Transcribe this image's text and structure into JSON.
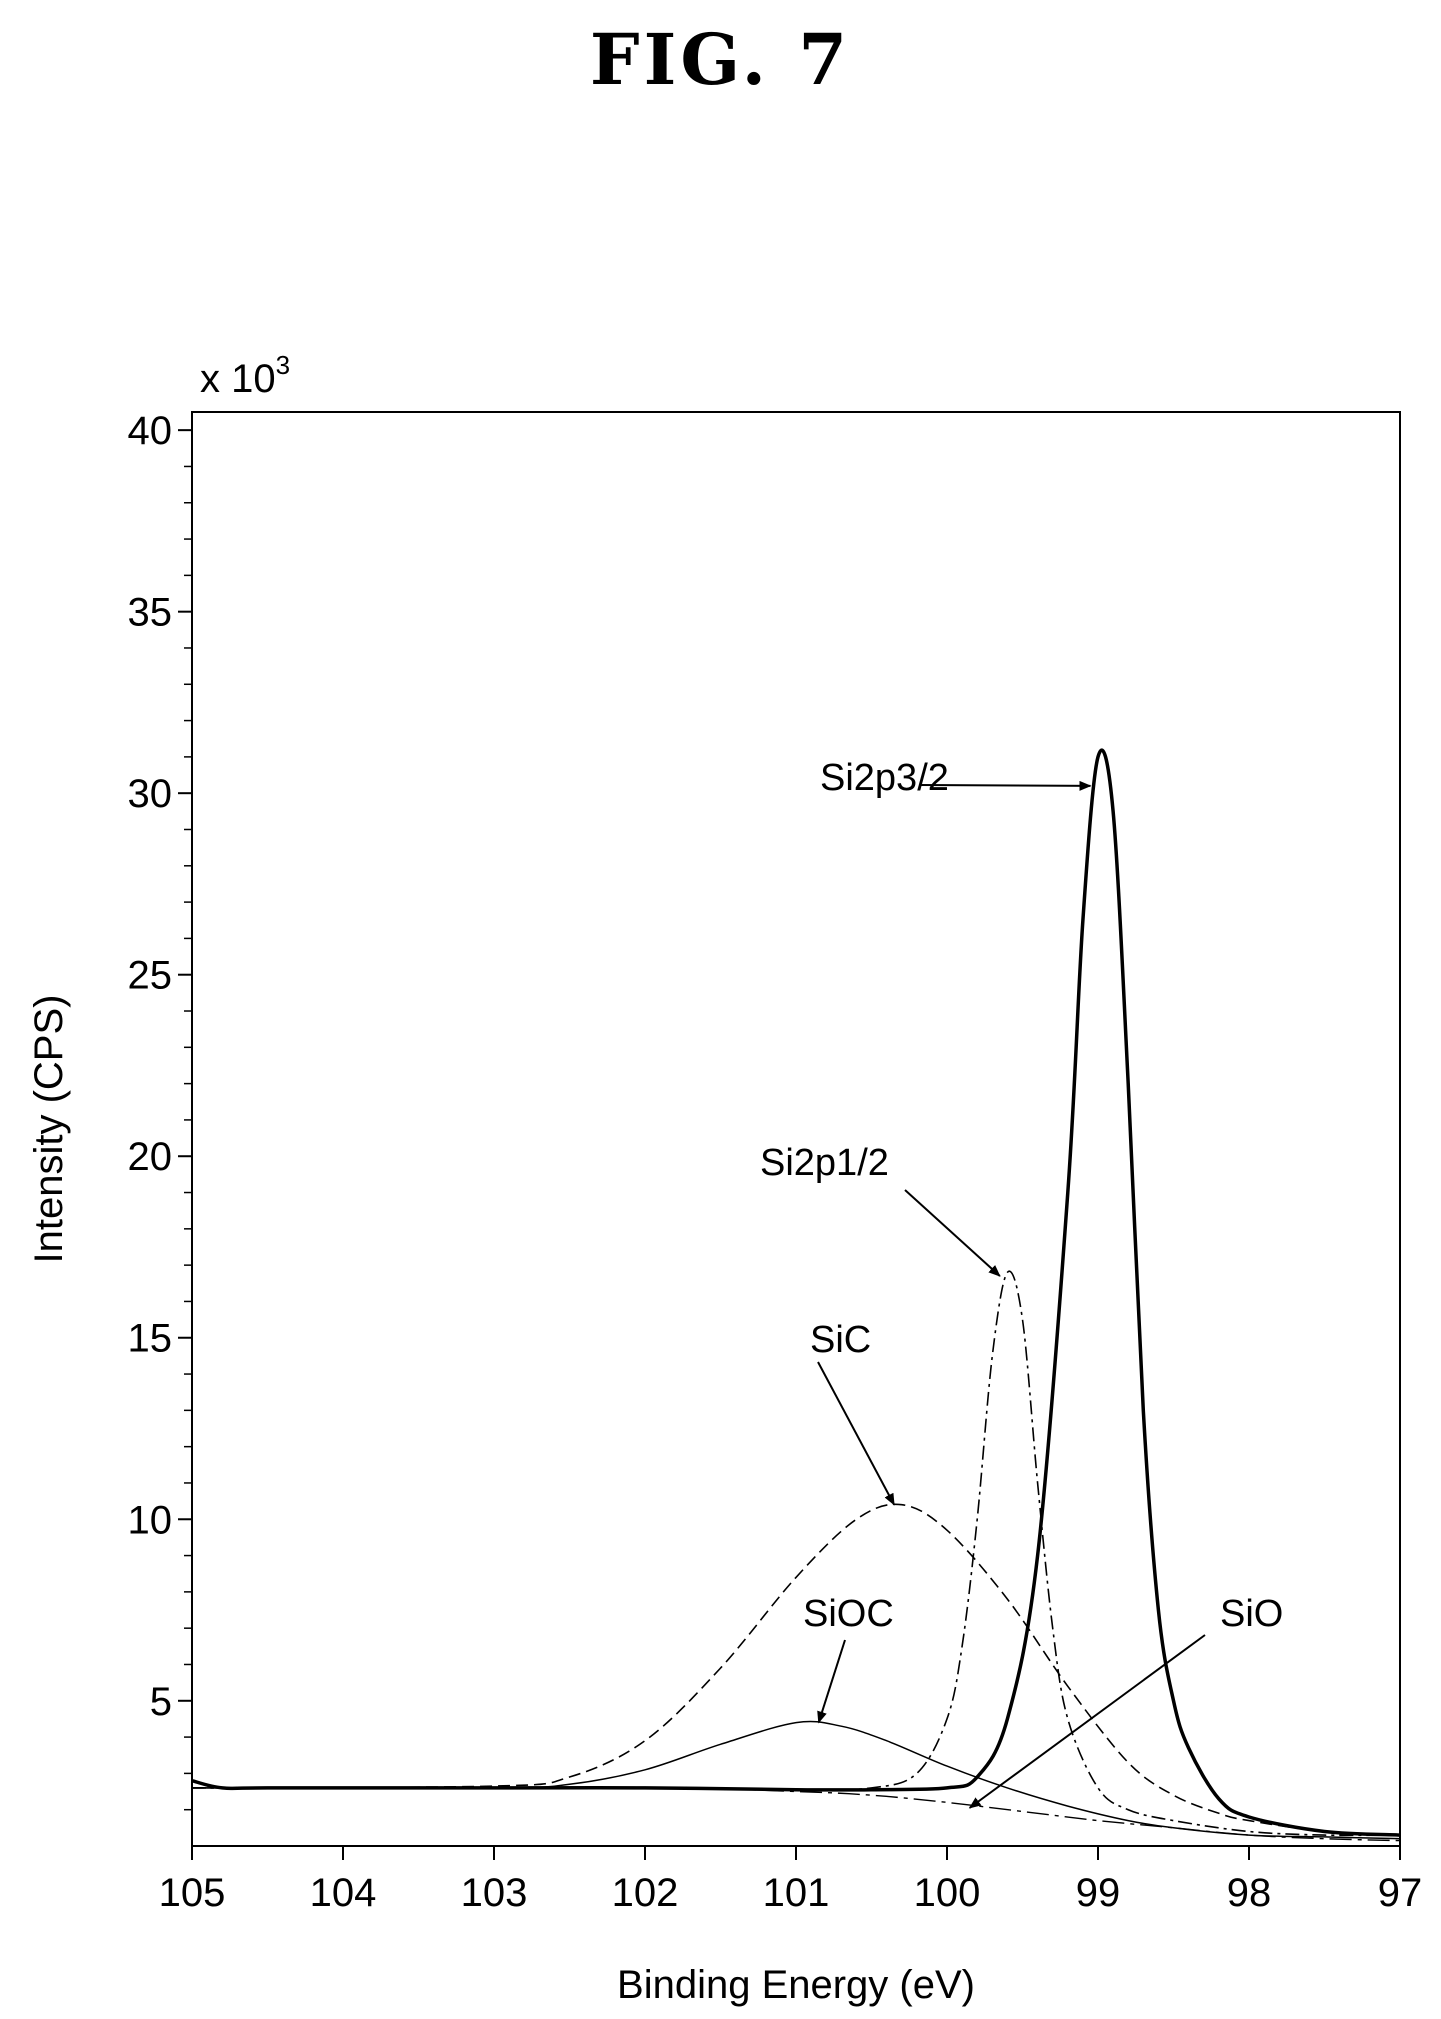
{
  "figure_title": "FIG. 7",
  "chart_data": {
    "type": "line",
    "title": "",
    "xlabel": "Binding Energy (eV)",
    "ylabel": "Intensity (CPS)",
    "y_multiplier_label": "x 10",
    "y_multiplier_exp": "3",
    "xlim": [
      105,
      97
    ],
    "ylim": [
      1,
      40.5
    ],
    "x_reversed": true,
    "grid": false,
    "x_ticks": [
      "105",
      "104",
      "103",
      "102",
      "101",
      "100",
      "99",
      "98",
      "97"
    ],
    "y_ticks": [
      "5",
      "10",
      "15",
      "20",
      "25",
      "30",
      "35",
      "40"
    ],
    "series": [
      {
        "name": "Si2p3/2",
        "style": "solid-bold",
        "x": [
          105,
          104.8,
          104.5,
          103,
          102,
          101,
          100.5,
          100,
          99.8,
          99.6,
          99.4,
          99.2,
          99.1,
          99.0,
          98.9,
          98.8,
          98.7,
          98.6,
          98.5,
          98.4,
          98.2,
          98.0,
          97.5,
          97.0
        ],
        "y": [
          2.8,
          2.6,
          2.6,
          2.6,
          2.6,
          2.55,
          2.55,
          2.6,
          2.9,
          4.5,
          9.0,
          19.0,
          26.5,
          31.0,
          29.5,
          22.0,
          13.0,
          7.5,
          5.0,
          3.7,
          2.3,
          1.8,
          1.4,
          1.3
        ]
      },
      {
        "name": "Si2p1/2",
        "style": "dash-dot",
        "x": [
          105,
          102,
          101,
          100.5,
          100.2,
          100.0,
          99.9,
          99.8,
          99.7,
          99.6,
          99.5,
          99.4,
          99.3,
          99.2,
          99.0,
          98.8,
          98.5,
          98.0,
          97.5,
          97.0
        ],
        "y": [
          2.6,
          2.6,
          2.55,
          2.6,
          3.0,
          4.5,
          6.5,
          10.0,
          14.5,
          16.8,
          15.5,
          11.0,
          7.0,
          4.5,
          2.6,
          2.0,
          1.7,
          1.4,
          1.3,
          1.3
        ]
      },
      {
        "name": "SiC",
        "style": "dashed",
        "x": [
          105,
          103,
          102.5,
          102,
          101.5,
          101,
          100.6,
          100.3,
          100.0,
          99.6,
          99.2,
          98.8,
          98.5,
          98.2,
          98.0,
          97.5,
          97.0
        ],
        "y": [
          2.6,
          2.65,
          2.9,
          3.9,
          5.9,
          8.4,
          10.0,
          10.4,
          9.7,
          7.8,
          5.4,
          3.3,
          2.4,
          1.9,
          1.7,
          1.4,
          1.3
        ]
      },
      {
        "name": "SiOC",
        "style": "thin-solid",
        "x": [
          105,
          103,
          102.5,
          102,
          101.5,
          101.0,
          100.7,
          100.4,
          100.0,
          99.6,
          99.2,
          98.8,
          98.5,
          98.0,
          97.5,
          97.0
        ],
        "y": [
          2.6,
          2.6,
          2.7,
          3.1,
          3.8,
          4.4,
          4.3,
          3.9,
          3.2,
          2.6,
          2.1,
          1.7,
          1.5,
          1.3,
          1.25,
          1.2
        ]
      },
      {
        "name": "SiO",
        "style": "long-dash-dot",
        "x": [
          105,
          102,
          101,
          100.5,
          100.0,
          99.5,
          99.0,
          98.5,
          98.0,
          97.5,
          97.0
        ],
        "y": [
          2.6,
          2.6,
          2.5,
          2.4,
          2.2,
          1.95,
          1.7,
          1.5,
          1.3,
          1.2,
          1.15
        ]
      }
    ],
    "annotations": [
      {
        "text": "Si2p3/2",
        "points_to": [
          99.05,
          30.2
        ]
      },
      {
        "text": "Si2p1/2",
        "points_to": [
          99.65,
          16.7
        ]
      },
      {
        "text": "SiC",
        "points_to": [
          100.35,
          10.4
        ]
      },
      {
        "text": "SiOC",
        "points_to": [
          100.85,
          4.4
        ]
      },
      {
        "text": "SiO",
        "points_to": [
          99.85,
          2.05
        ]
      }
    ]
  }
}
